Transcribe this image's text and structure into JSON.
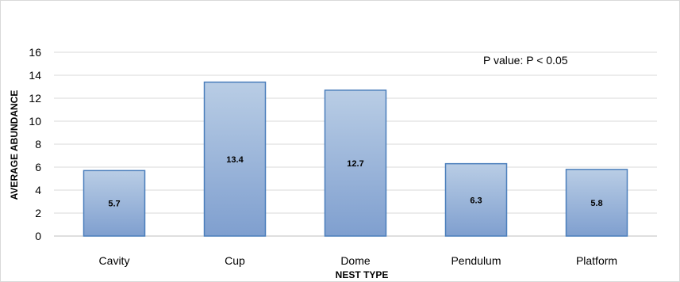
{
  "chart_data": {
    "type": "bar",
    "categories": [
      "Cavity",
      "Cup",
      "Dome",
      "Pendulum",
      "Platform"
    ],
    "values": [
      5.7,
      13.4,
      12.7,
      6.3,
      5.8
    ],
    "data_labels": [
      "5.7",
      "13.4",
      "12.7",
      "6.3",
      "5.8"
    ],
    "title": "",
    "xlabel": "NEST TYPE",
    "ylabel": "AVERAGE ABUNDANCE",
    "ylim": [
      0,
      16
    ],
    "yticks": [
      0,
      2,
      4,
      6,
      8,
      10,
      12,
      14,
      16
    ],
    "annotation": "P value: P < 0.05",
    "grid": true,
    "legend": "none",
    "colors": {
      "bar_top": "#b9cde5",
      "bar_bottom": "#7f9fcf",
      "bar_border": "#4a7ebb",
      "grid": "#d9d9d9"
    }
  }
}
